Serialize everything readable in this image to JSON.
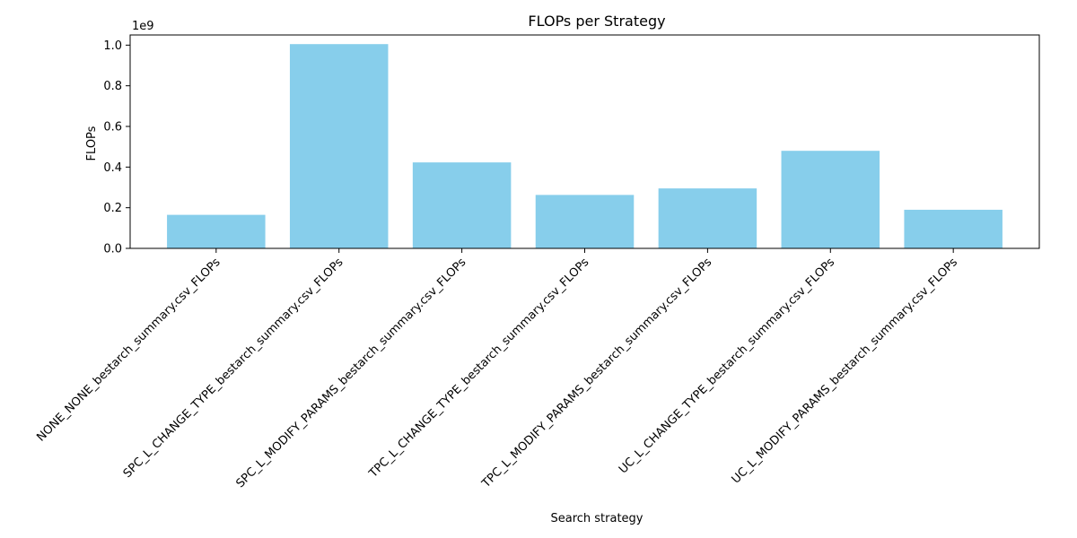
{
  "chart_data": {
    "type": "bar",
    "title": "FLOPs per Strategy",
    "xlabel": "Search strategy",
    "ylabel": "FLOPs",
    "y_offset_label": "1e9",
    "bar_color": "#87CEEB",
    "categories": [
      "NONE_NONE_bestarch_summary.csv_FLOPs",
      "SPC_L_CHANGE_TYPE_bestarch_summary.csv_FLOPs",
      "SPC_L_MODIFY_PARAMS_bestarch_summary.csv_FLOPs",
      "TPC_L_CHANGE_TYPE_bestarch_summary.csv_FLOPs",
      "TPC_L_MODIFY_PARAMS_bestarch_summary.csv_FLOPs",
      "UC_L_CHANGE_TYPE_bestarch_summary.csv_FLOPs",
      "UC_L_MODIFY_PARAMS_bestarch_summary.csv_FLOPs"
    ],
    "values": [
      165000000,
      1005000000,
      423000000,
      263000000,
      295000000,
      480000000,
      190000000
    ],
    "ylim": [
      0,
      1050000000
    ],
    "yticks": [
      0,
      200000000,
      400000000,
      600000000,
      800000000,
      1000000000
    ],
    "ytick_labels": [
      "0.0",
      "0.2",
      "0.4",
      "0.6",
      "0.8",
      "1.0"
    ],
    "grid": false
  }
}
